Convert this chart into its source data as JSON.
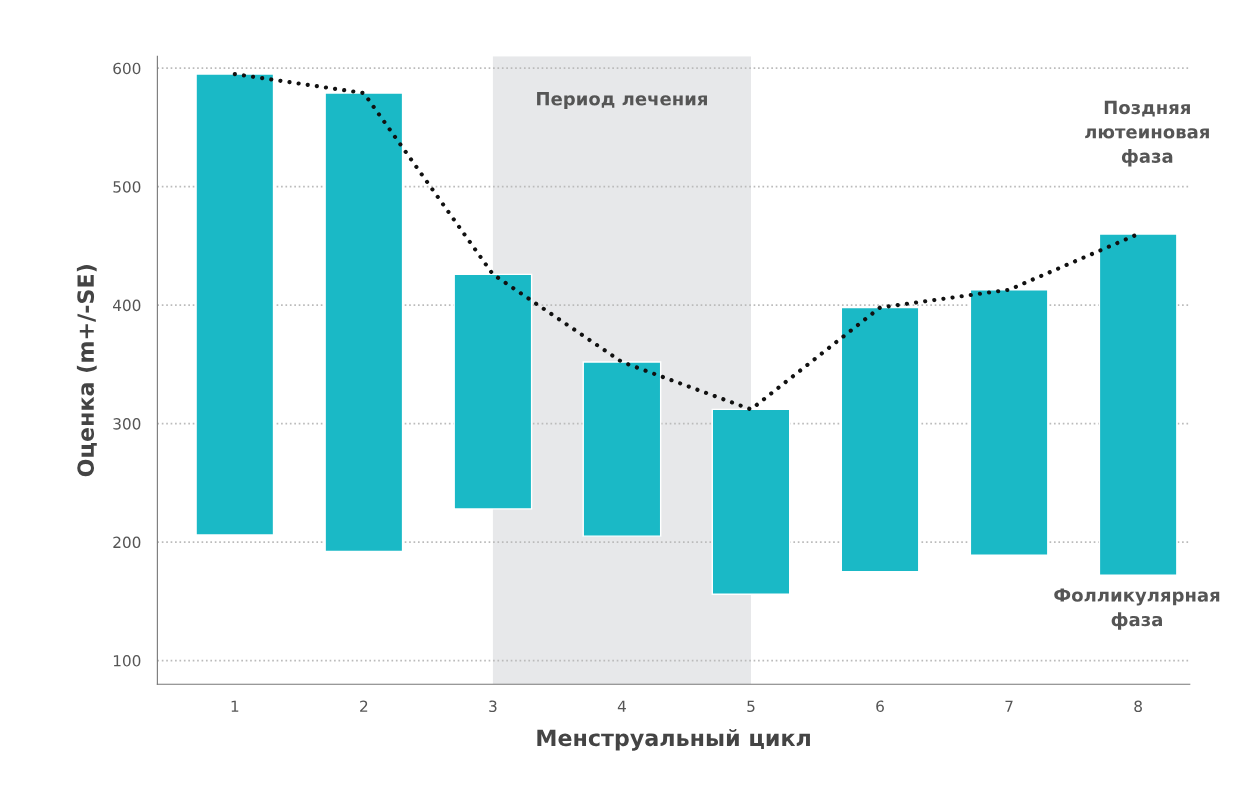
{
  "chart_data": {
    "type": "bar",
    "xlabel": "Менструальный цикл",
    "ylabel": "Оценка (m+/-SE)",
    "categories": [
      "1",
      "2",
      "3",
      "4",
      "5",
      "6",
      "7",
      "8"
    ],
    "series": [
      {
        "color": "#1ab9c6",
        "base": [
          206,
          192,
          228,
          205,
          156,
          175,
          189,
          172
        ],
        "values": [
          389,
          387,
          198,
          147,
          156,
          223,
          224,
          288
        ]
      },
      {
        "type": "line",
        "color": "#111111",
        "values": [
          595,
          579,
          426,
          352,
          312,
          398,
          413,
          460
        ],
        "line_style": "dotted",
        "marker": "none"
      }
    ],
    "ylim": [
      80,
      610
    ],
    "yticks": [
      100,
      200,
      300,
      400,
      500,
      600
    ],
    "grid": "y",
    "bands": [
      {
        "axis": "x",
        "from": "3",
        "to": "5",
        "label": "Период лечения",
        "color": "#e7e8ea"
      }
    ],
    "annotations": [
      "Поздняя лютеиновая фаза",
      "Фолликулярная фаза"
    ]
  }
}
